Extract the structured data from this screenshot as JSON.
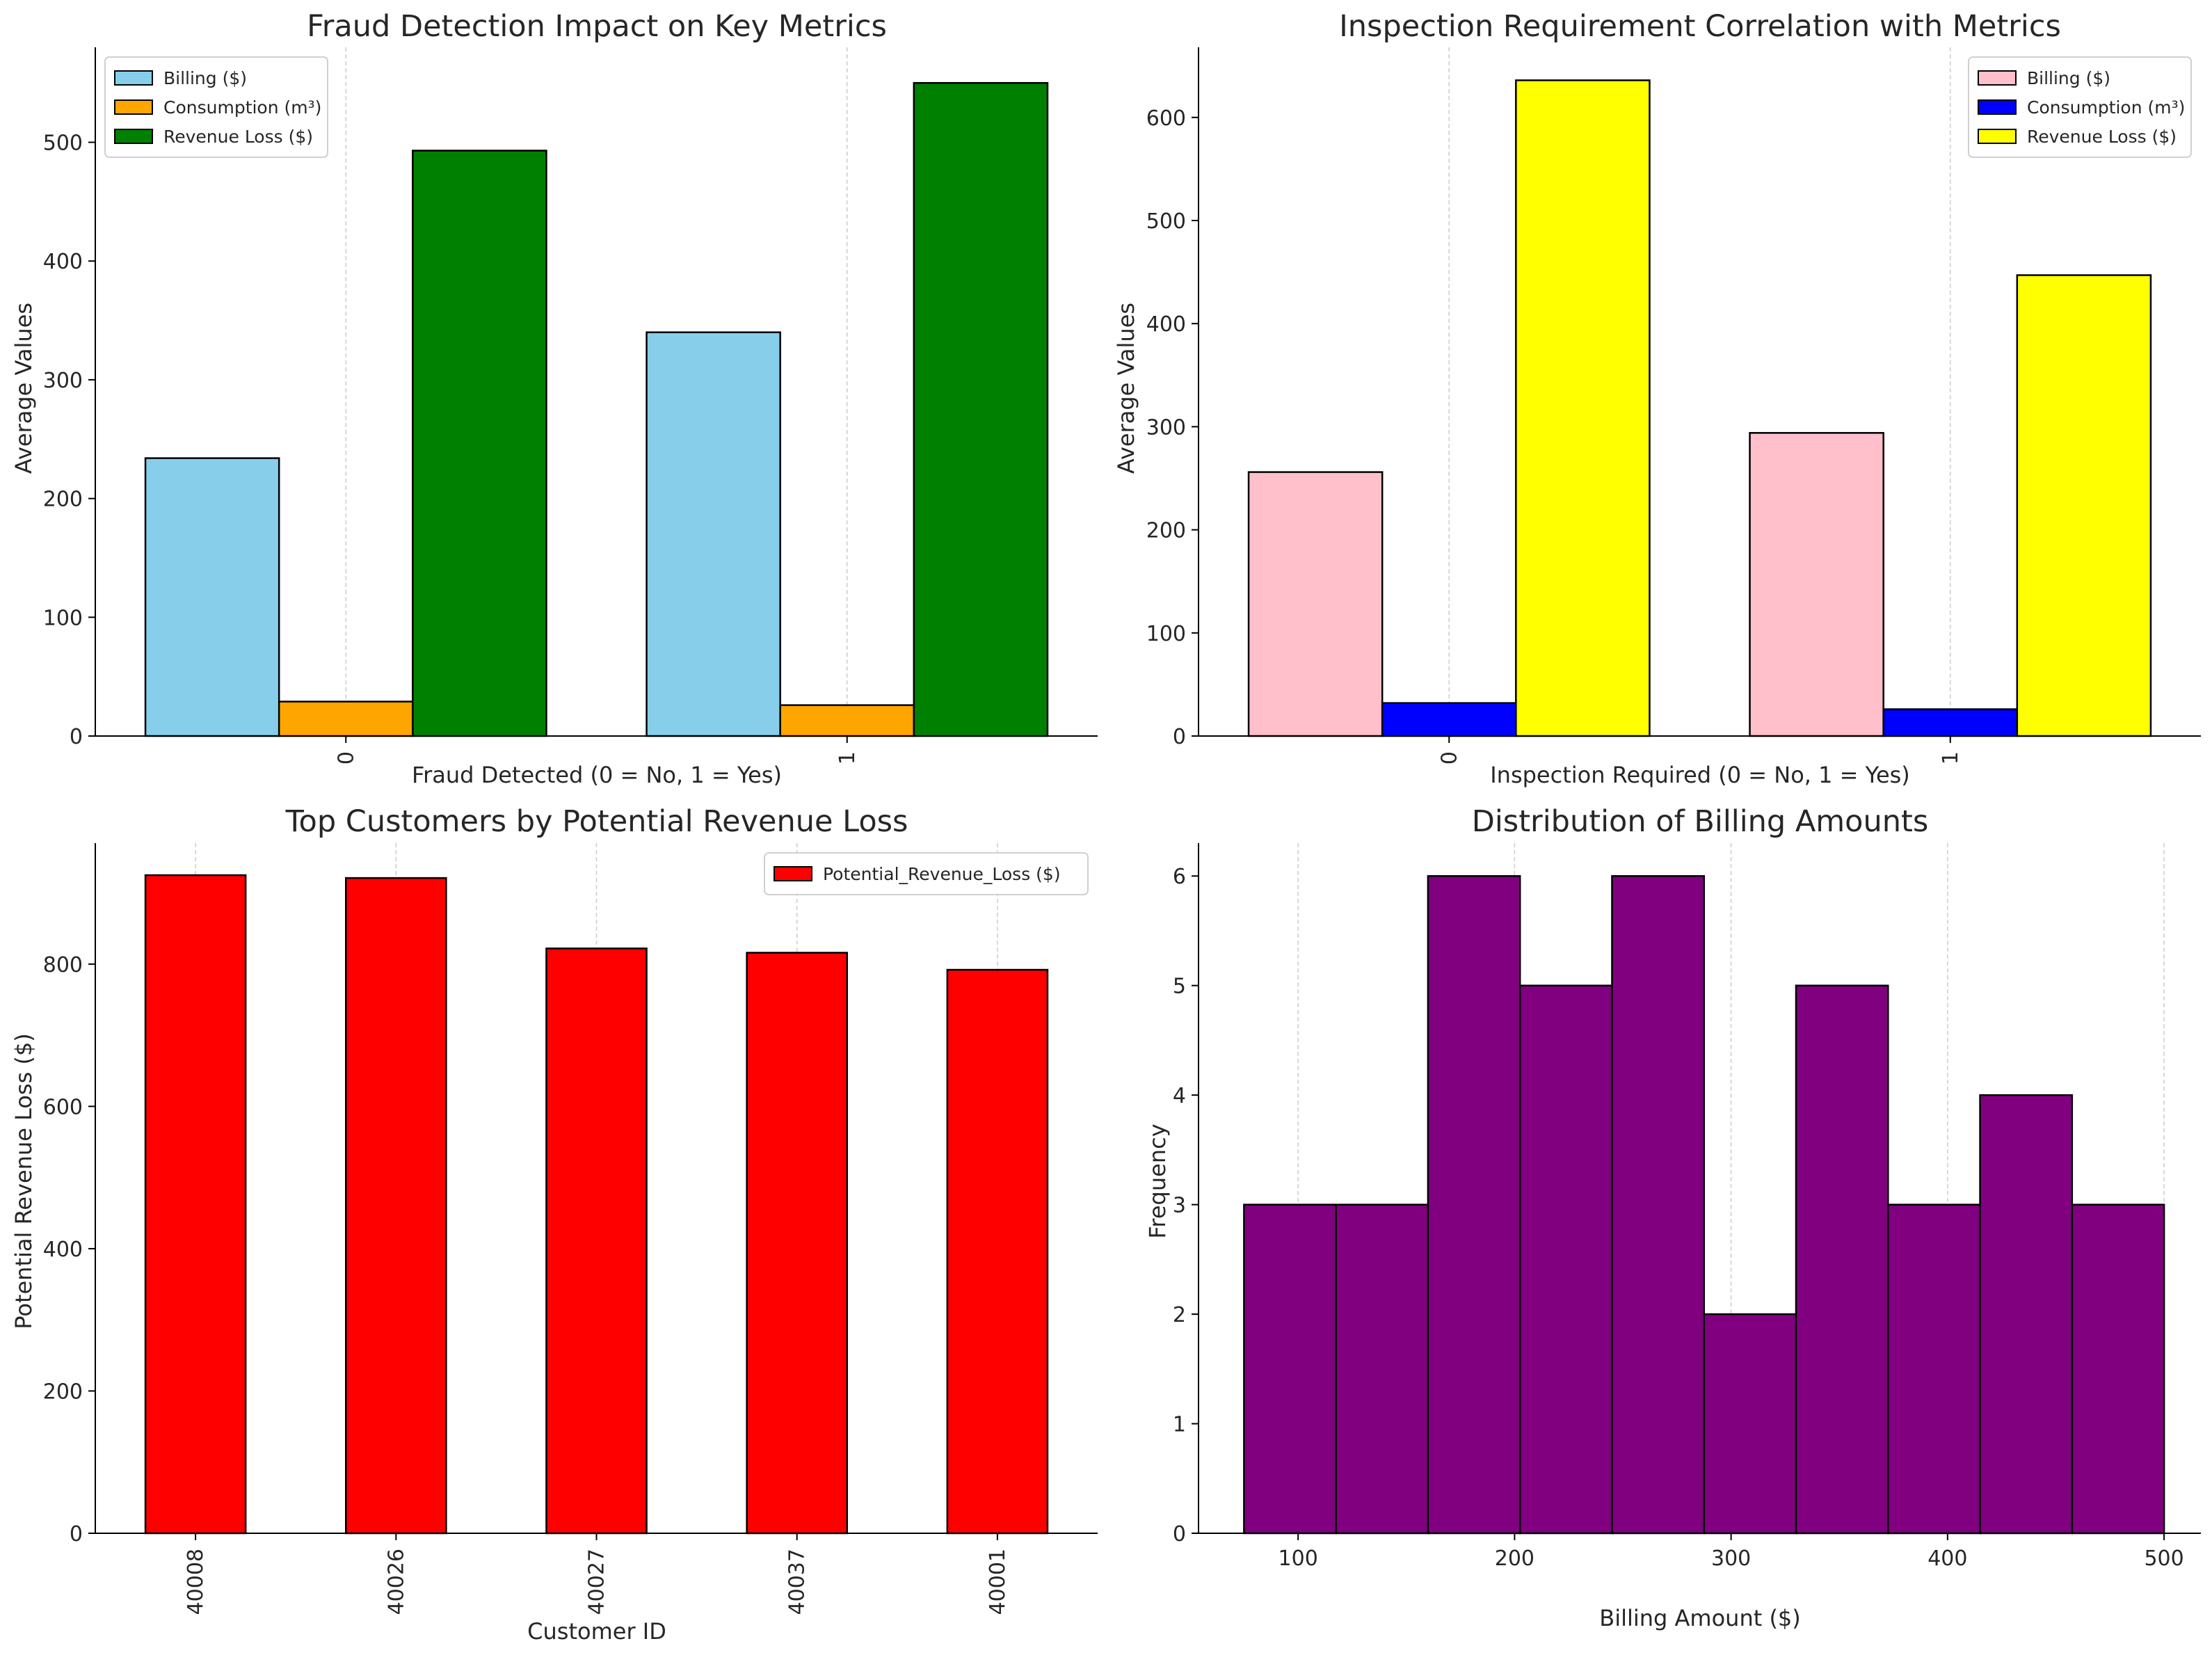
{
  "chart_data": [
    {
      "type": "bar",
      "title": "Fraud Detection Impact on Key Metrics",
      "xlabel": "Fraud Detected (0 = No, 1 = Yes)",
      "ylabel": "Average Values",
      "categories": [
        "0",
        "1"
      ],
      "series": [
        {
          "name": "Billing ($)",
          "color": "#87ceeb",
          "values": [
            234,
            340
          ]
        },
        {
          "name": "Consumption (m³)",
          "color": "#ffa500",
          "values": [
            29,
            26
          ]
        },
        {
          "name": "Revenue Loss ($)",
          "color": "#008000",
          "values": [
            493,
            550
          ]
        }
      ],
      "ylim": [
        0,
        580
      ],
      "yticks": [
        0,
        100,
        200,
        300,
        400,
        500
      ],
      "legend": "top-left",
      "grid": "x"
    },
    {
      "type": "bar",
      "title": "Inspection Requirement Correlation with Metrics",
      "xlabel": "Inspection Required (0 = No, 1 = Yes)",
      "ylabel": "Average Values",
      "categories": [
        "0",
        "1"
      ],
      "series": [
        {
          "name": "Billing ($)",
          "color": "#ffc0cb",
          "values": [
            256,
            294
          ]
        },
        {
          "name": "Consumption (m³)",
          "color": "#0000ff",
          "values": [
            32,
            26
          ]
        },
        {
          "name": "Revenue Loss ($)",
          "color": "#ffff00",
          "values": [
            636,
            447
          ]
        }
      ],
      "ylim": [
        0,
        668
      ],
      "yticks": [
        0,
        100,
        200,
        300,
        400,
        500,
        600
      ],
      "legend": "top-right",
      "grid": "x"
    },
    {
      "type": "bar",
      "title": "Top Customers by Potential Revenue Loss",
      "xlabel": "Customer ID",
      "ylabel": "Potential Revenue Loss ($)",
      "categories": [
        "40008",
        "40026",
        "40027",
        "40037",
        "40001"
      ],
      "series": [
        {
          "name": "Potential_Revenue_Loss ($)",
          "color": "#ff0000",
          "values": [
            925,
            921,
            822,
            816,
            792
          ]
        }
      ],
      "ylim": [
        0,
        970
      ],
      "yticks": [
        0,
        200,
        400,
        600,
        800
      ],
      "legend": "top-right",
      "grid": "x"
    },
    {
      "type": "histogram",
      "title": "Distribution of Billing Amounts",
      "xlabel": "Billing Amount ($)",
      "ylabel": "Frequency",
      "bins": [
        {
          "start": 75,
          "end": 117.5,
          "count": 3
        },
        {
          "start": 117.5,
          "end": 160,
          "count": 3
        },
        {
          "start": 160,
          "end": 202.5,
          "count": 6
        },
        {
          "start": 202.5,
          "end": 245,
          "count": 5
        },
        {
          "start": 245,
          "end": 287.5,
          "count": 6
        },
        {
          "start": 287.5,
          "end": 330,
          "count": 2
        },
        {
          "start": 330,
          "end": 372.5,
          "count": 5
        },
        {
          "start": 372.5,
          "end": 415,
          "count": 3
        },
        {
          "start": 415,
          "end": 457.5,
          "count": 4
        },
        {
          "start": 457.5,
          "end": 500,
          "count": 3
        }
      ],
      "color": "#800080",
      "xlim": [
        54,
        517
      ],
      "ylim": [
        0,
        6.3
      ],
      "xticks": [
        100,
        200,
        300,
        400,
        500
      ],
      "yticks": [
        0,
        1,
        2,
        3,
        4,
        5,
        6
      ],
      "grid": "x"
    }
  ]
}
